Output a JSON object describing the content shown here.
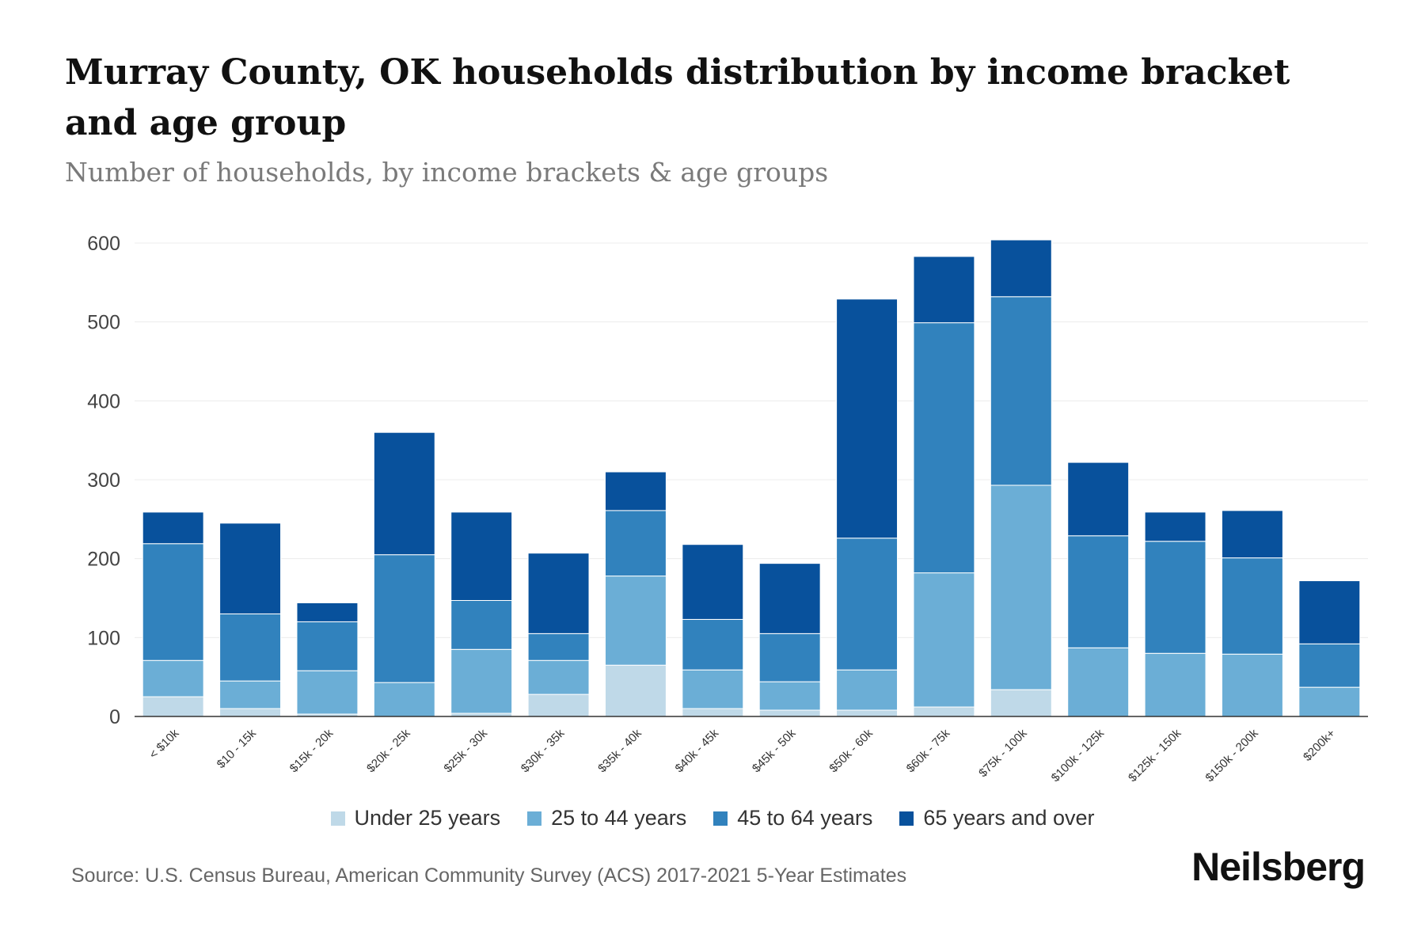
{
  "chart_data": {
    "type": "bar",
    "stacked": true,
    "title": "Murray County, OK households distribution by income bracket and age group",
    "subtitle": "Number of households, by income brackets & age groups",
    "xlabel": "",
    "ylabel": "",
    "ylim": [
      0,
      600
    ],
    "yticks": [
      0,
      100,
      200,
      300,
      400,
      500,
      600
    ],
    "grid": true,
    "legend_position": "bottom",
    "categories": [
      "< $10k",
      "$10 - 15k",
      "$15k - 20k",
      "$20k - 25k",
      "$25k - 30k",
      "$30k - 35k",
      "$35k - 40k",
      "$40k - 45k",
      "$45k - 50k",
      "$50k - 60k",
      "$60k - 75k",
      "$75k - 100k",
      "$100k - 125k",
      "$125k - 150k",
      "$150k - 200k",
      "$200k+"
    ],
    "series": [
      {
        "name": "Under 25 years",
        "color": "#bfd9e8",
        "values": [
          25,
          10,
          3,
          0,
          4,
          28,
          65,
          10,
          8,
          8,
          12,
          34,
          0,
          0,
          0,
          0
        ]
      },
      {
        "name": "25 to 44 years",
        "color": "#6baed6",
        "values": [
          46,
          35,
          55,
          43,
          81,
          43,
          113,
          49,
          36,
          51,
          170,
          259,
          87,
          80,
          79,
          37
        ]
      },
      {
        "name": "45 to 64 years",
        "color": "#3182bd",
        "values": [
          148,
          85,
          62,
          162,
          62,
          34,
          83,
          64,
          61,
          167,
          317,
          239,
          142,
          142,
          122,
          55
        ]
      },
      {
        "name": "65 years and over",
        "color": "#08519c",
        "values": [
          40,
          115,
          24,
          155,
          112,
          102,
          49,
          95,
          89,
          303,
          84,
          72,
          93,
          37,
          60,
          80
        ]
      }
    ]
  },
  "source": "Source: U.S. Census Bureau, American Community Survey (ACS) 2017-2021 5-Year Estimates",
  "brand": "Neilsberg"
}
